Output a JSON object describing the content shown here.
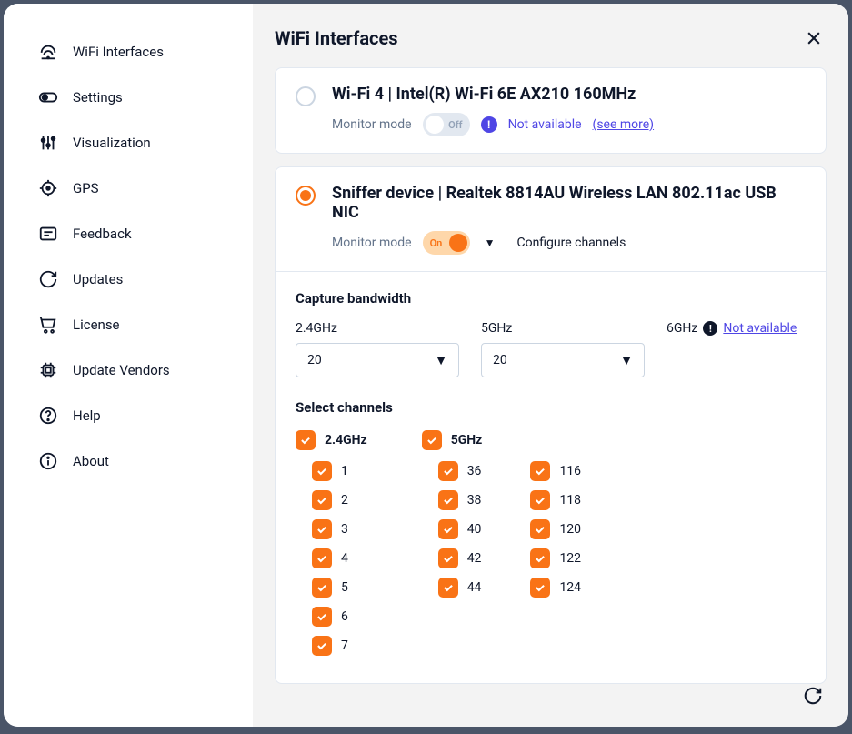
{
  "sidebar": {
    "items": [
      {
        "label": "WiFi Interfaces",
        "icon": "wifi"
      },
      {
        "label": "Settings",
        "icon": "toggle"
      },
      {
        "label": "Visualization",
        "icon": "sliders"
      },
      {
        "label": "GPS",
        "icon": "target"
      },
      {
        "label": "Feedback",
        "icon": "message"
      },
      {
        "label": "Updates",
        "icon": "refresh"
      },
      {
        "label": "License",
        "icon": "cart"
      },
      {
        "label": "Update Vendors",
        "icon": "chip"
      },
      {
        "label": "Help",
        "icon": "help"
      },
      {
        "label": "About",
        "icon": "info"
      }
    ]
  },
  "header": {
    "title": "WiFi Interfaces"
  },
  "interfaces": [
    {
      "selected": false,
      "title": "Wi-Fi 4 | Intel(R) Wi-Fi 6E AX210 160MHz",
      "monitor_label": "Monitor mode",
      "toggle_state": "Off",
      "not_available": "Not available",
      "see_more": "(see more)"
    },
    {
      "selected": true,
      "title": "Sniffer device | Realtek 8814AU Wireless LAN 802.11ac USB NIC",
      "monitor_label": "Monitor mode",
      "toggle_state": "On",
      "configure": "Configure channels"
    }
  ],
  "bandwidth": {
    "title": "Capture bandwidth",
    "bands": [
      {
        "label": "2.4GHz",
        "value": "20"
      },
      {
        "label": "5GHz",
        "value": "20"
      }
    ],
    "band6": {
      "label": "6GHz",
      "not_available": "Not available"
    }
  },
  "channels": {
    "title": "Select channels",
    "band24": {
      "label": "2.4GHz",
      "list": [
        "1",
        "2",
        "3",
        "4",
        "5",
        "6",
        "7"
      ]
    },
    "band5": {
      "label": "5GHz",
      "col1": [
        "36",
        "38",
        "40",
        "42",
        "44"
      ],
      "col2": [
        "116",
        "118",
        "120",
        "122",
        "124"
      ]
    }
  },
  "colors": {
    "accent": "#f97316",
    "accent_light": "#fed7aa",
    "indigo": "#4f46e5",
    "border": "#e2e8f0",
    "muted": "#64748b",
    "bg_main": "#f3f3f3"
  }
}
